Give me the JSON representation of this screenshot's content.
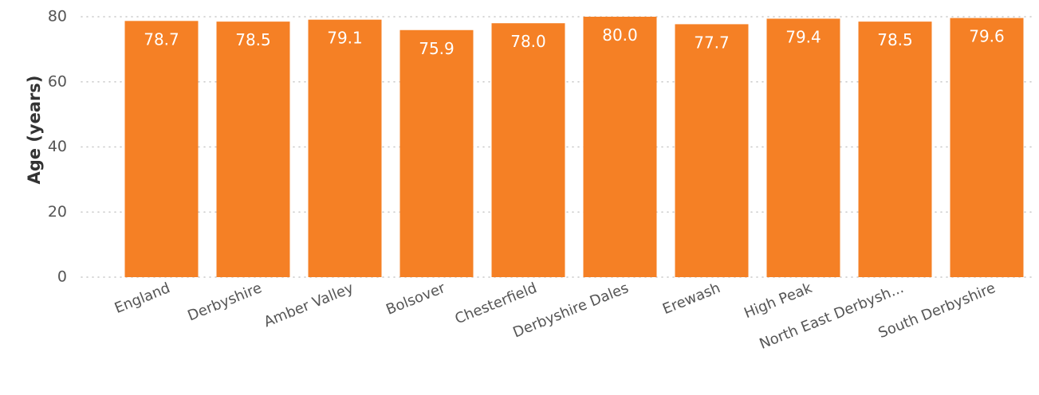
{
  "chart_data": {
    "type": "bar",
    "title": "",
    "xlabel": "",
    "ylabel": "Age (years)",
    "ylim": [
      0,
      80
    ],
    "yticks": [
      0,
      20,
      40,
      60,
      80
    ],
    "grid": true,
    "bar_color": "#F58025",
    "data_label_color": "#FFFFFF",
    "categories": [
      "England",
      "Derbyshire",
      "Amber Valley",
      "Bolsover",
      "Chesterfield",
      "Derbyshire Dales",
      "Erewash",
      "High Peak",
      "North East Derbysh...",
      "South Derbyshire"
    ],
    "values": [
      78.7,
      78.5,
      79.1,
      75.9,
      78.0,
      80.0,
      77.7,
      79.4,
      78.5,
      79.6
    ],
    "data_labels": [
      "78.7",
      "78.5",
      "79.1",
      "75.9",
      "78.0",
      "80.0",
      "77.7",
      "79.4",
      "78.5",
      "79.6"
    ]
  }
}
